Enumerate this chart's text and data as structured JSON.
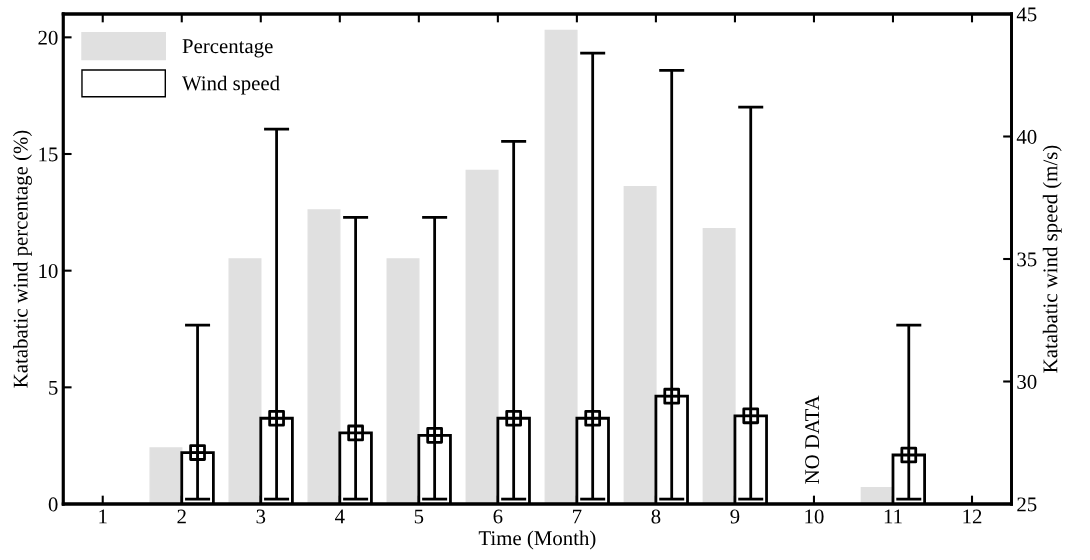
{
  "chart_data": {
    "type": "bar",
    "xlabel": "Time (Month)",
    "ylabel": "Katabatic wind percentage (%)",
    "y2label": "Katabatic wind speed (m/s)",
    "categories": [
      "1",
      "2",
      "3",
      "4",
      "5",
      "6",
      "7",
      "8",
      "9",
      "10",
      "11",
      "12"
    ],
    "series": [
      {
        "name": "Percentage",
        "color": "#e0e0e0",
        "values": [
          null,
          2.4,
          10.5,
          12.6,
          10.5,
          14.3,
          20.3,
          13.6,
          11.8,
          null,
          0.7,
          null
        ]
      },
      {
        "name": "Wind speed",
        "axis": "y2",
        "color": "#ffffff",
        "values": [
          null,
          27.1,
          28.5,
          27.9,
          27.8,
          28.5,
          28.5,
          29.4,
          28.6,
          null,
          27.0,
          null
        ],
        "errors": [
          null,
          [
            25.2,
            32.3
          ],
          [
            25.2,
            40.3
          ],
          [
            25.2,
            36.7
          ],
          [
            25.2,
            36.7
          ],
          [
            25.2,
            39.8
          ],
          [
            25.2,
            43.4
          ],
          [
            25.2,
            42.7
          ],
          [
            25.2,
            41.2
          ],
          null,
          [
            25.2,
            32.3
          ],
          null
        ]
      },
      {
        "type": "scatter",
        "axis": "y2",
        "color": "#000000",
        "marker": "square",
        "x": [
          "2",
          "3",
          "4",
          "5",
          "6",
          "7",
          "8",
          "9",
          "11"
        ],
        "values": [
          27.1,
          28.5,
          27.9,
          27.8,
          28.5,
          28.5,
          29.4,
          28.6,
          27.0
        ]
      }
    ],
    "ylim": [
      0,
      21
    ],
    "yticks": [
      0,
      5,
      10,
      15,
      20
    ],
    "y2lim": [
      25,
      45
    ],
    "y2ticks": [
      25,
      30,
      35,
      40,
      45
    ],
    "annotations": [
      "NO DATA"
    ],
    "legend": "top left",
    "grid": false
  }
}
